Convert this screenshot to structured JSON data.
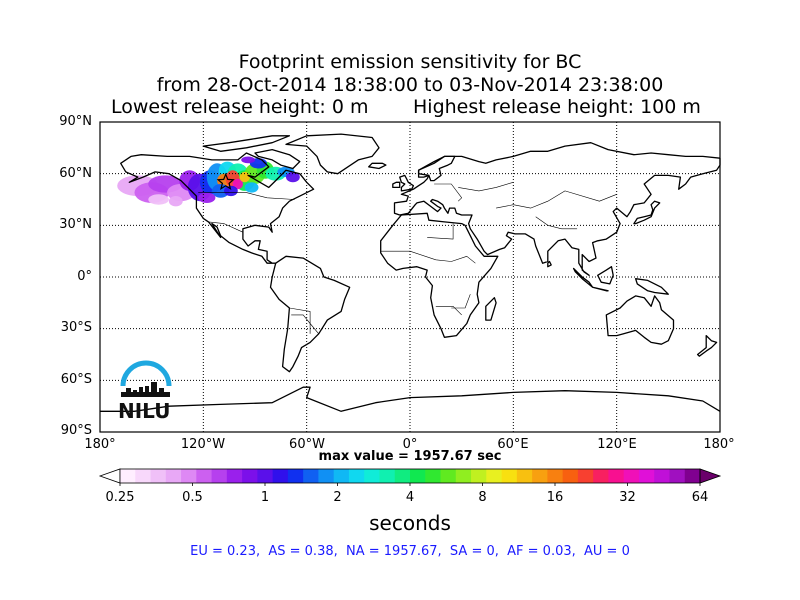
{
  "header": {
    "title_line1": "Footprint emission sensitivity for BC",
    "title_line2": "from 28-Oct-2014 18:38:00 to 03-Nov-2014 23:38:00",
    "release_low": "Lowest release height: 0 m",
    "release_high": "Highest release height: 100 m"
  },
  "map": {
    "projection": "equirectangular",
    "extent": {
      "lon": [
        -180,
        180
      ],
      "lat": [
        -90,
        90
      ]
    },
    "lat_labels": [
      "90°N",
      "60°N",
      "30°N",
      "0°",
      "30°S",
      "60°S",
      "90°S"
    ],
    "lon_labels": [
      "180°",
      "120°W",
      "60°W",
      "0°",
      "60°E",
      "120°E",
      "180°"
    ],
    "gridlines": "dotted",
    "release_marker": {
      "type": "star",
      "lon": -107,
      "lat": 55
    }
  },
  "max_value": "max value = 1957.67 sec",
  "colorbar": {
    "ticks": [
      "0.25",
      "0.5",
      "1",
      "2",
      "4",
      "8",
      "16",
      "32",
      "64"
    ],
    "units": "seconds",
    "colors": [
      "#ffeeff",
      "#f8d8fb",
      "#f0c0f8",
      "#e8a8f6",
      "#de88f4",
      "#cc60f0",
      "#b640ee",
      "#9a20ec",
      "#7c10ea",
      "#5a10ea",
      "#3010ec",
      "#1030f0",
      "#1060f2",
      "#1090f4",
      "#10b8f4",
      "#10d8f0",
      "#10ecd8",
      "#10f0b0",
      "#10ec80",
      "#10e850",
      "#30e830",
      "#60ea20",
      "#90ee20",
      "#c0f020",
      "#e8f020",
      "#f8e010",
      "#f8c010",
      "#f8a010",
      "#f88010",
      "#f86010",
      "#f84030",
      "#f82060",
      "#f81090",
      "#f010b8",
      "#e010d8",
      "#c010d8",
      "#a010c0",
      "#800090"
    ],
    "low_extend": "#ffffff",
    "high_extend": "#6a006a"
  },
  "stats": "EU = 0.23,  AS = 0.38,  NA = 1957.67,  SA = 0,  AF = 0.03,  AU = 0",
  "logo": {
    "text": "NILU",
    "arc_color": "#1fa8e0"
  }
}
